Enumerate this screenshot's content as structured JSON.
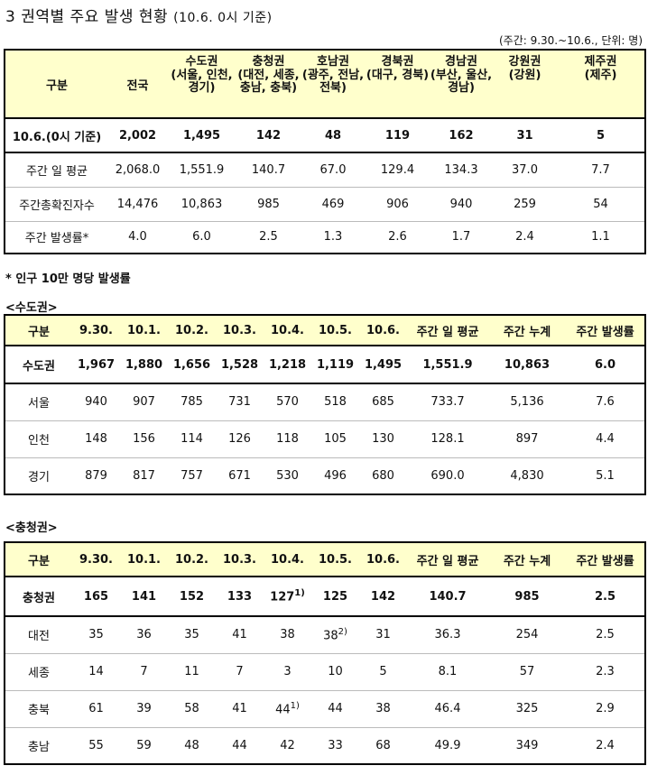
{
  "title": "3 권역별 주요 발생 현황",
  "title_sub": "(10.6. 0시 기준)",
  "unit": "(주간: 9.30.~10.6., 단위: 명)",
  "summary": {
    "headers": [
      "구분",
      "전국",
      "수도권",
      "충청권",
      "호남권",
      "경북권",
      "경남권",
      "강원권",
      "제주권"
    ],
    "subheaders": [
      "",
      "",
      "(서울, 인천, 경기)",
      "(대전, 세종, 충남, 충북)",
      "(광주, 전남, 전북)",
      "(대구, 경북)",
      "(부산, 울산, 경남)",
      "(강원)",
      "(제주)"
    ],
    "rows": [
      [
        "10.6.(0시 기준)",
        "2,002",
        "1,495",
        "142",
        "48",
        "119",
        "162",
        "31",
        "5"
      ],
      [
        "주간 일 평균",
        "2,068.0",
        "1,551.9",
        "140.7",
        "67.0",
        "129.4",
        "134.3",
        "37.0",
        "7.7"
      ],
      [
        "주간총확진자수",
        "14,476",
        "10,863",
        "985",
        "469",
        "906",
        "940",
        "259",
        "54"
      ],
      [
        "주간 발생률*",
        "4.0",
        "6.0",
        "2.5",
        "1.3",
        "2.6",
        "1.7",
        "2.4",
        "1.1"
      ]
    ]
  },
  "footnote": "* 인구 10만 명당 발생률",
  "capital": {
    "title": "<수도권>",
    "headers": [
      "구분",
      "9.30.",
      "10.1.",
      "10.2.",
      "10.3.",
      "10.4.",
      "10.5.",
      "10.6.",
      "주간 일 평균",
      "주간 누계",
      "주간 발생률"
    ],
    "rows": [
      [
        "수도권",
        "1,967",
        "1,880",
        "1,656",
        "1,528",
        "1,218",
        "1,119",
        "1,495",
        "1,551.9",
        "10,863",
        "6.0"
      ],
      [
        "서울",
        "940",
        "907",
        "785",
        "731",
        "570",
        "518",
        "685",
        "733.7",
        "5,136",
        "7.6"
      ],
      [
        "인천",
        "148",
        "156",
        "114",
        "126",
        "118",
        "105",
        "130",
        "128.1",
        "897",
        "4.4"
      ],
      [
        "경기",
        "879",
        "817",
        "757",
        "671",
        "530",
        "496",
        "680",
        "690.0",
        "4,830",
        "5.1"
      ]
    ]
  },
  "chungcheong": {
    "title": "<충청권>",
    "headers": [
      "구분",
      "9.30.",
      "10.1.",
      "10.2.",
      "10.3.",
      "10.4.",
      "10.5.",
      "10.6.",
      "주간 일 평균",
      "주간 누계",
      "주간 발생률"
    ],
    "rows": [
      [
        "충청권",
        "165",
        "141",
        "152",
        "133",
        "127",
        "125",
        "142",
        "140.7",
        "985",
        "2.5"
      ],
      [
        "대전",
        "35",
        "36",
        "35",
        "41",
        "38",
        "38",
        "31",
        "36.3",
        "254",
        "2.5"
      ],
      [
        "세종",
        "14",
        "7",
        "11",
        "7",
        "3",
        "10",
        "5",
        "8.1",
        "57",
        "2.3"
      ],
      [
        "충북",
        "61",
        "39",
        "58",
        "41",
        "44",
        "44",
        "38",
        "46.4",
        "325",
        "2.9"
      ],
      [
        "충남",
        "55",
        "59",
        "48",
        "44",
        "42",
        "33",
        "68",
        "49.9",
        "349",
        "2.4"
      ]
    ],
    "sup_marks": {
      "r0c5": "1)",
      "r1c6": "2)",
      "r3c5": "1)"
    }
  }
}
